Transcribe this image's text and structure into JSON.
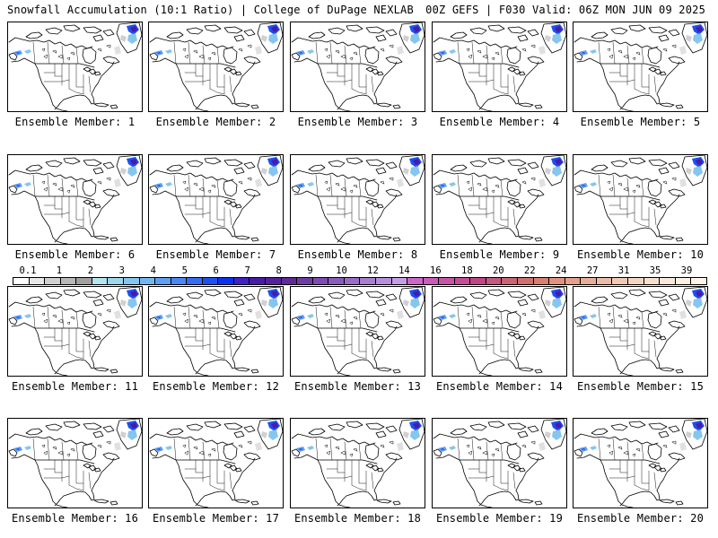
{
  "header": {
    "title": "Snowfall Accumulation (10:1 Ratio) | College of DuPage NEXLAB",
    "run_info": "00Z GEFS | F030 Valid: 06Z MON JUN 09 2025"
  },
  "panels": [
    {
      "label": "Ensemble Member: 1"
    },
    {
      "label": "Ensemble Member: 2"
    },
    {
      "label": "Ensemble Member: 3"
    },
    {
      "label": "Ensemble Member: 4"
    },
    {
      "label": "Ensemble Member: 5"
    },
    {
      "label": "Ensemble Member: 6"
    },
    {
      "label": "Ensemble Member: 7"
    },
    {
      "label": "Ensemble Member: 8"
    },
    {
      "label": "Ensemble Member: 9"
    },
    {
      "label": "Ensemble Member: 10"
    },
    {
      "label": "Ensemble Member: 11"
    },
    {
      "label": "Ensemble Member: 12"
    },
    {
      "label": "Ensemble Member: 13"
    },
    {
      "label": "Ensemble Member: 14"
    },
    {
      "label": "Ensemble Member: 15"
    },
    {
      "label": "Ensemble Member: 16"
    },
    {
      "label": "Ensemble Member: 17"
    },
    {
      "label": "Ensemble Member: 18"
    },
    {
      "label": "Ensemble Member: 19"
    },
    {
      "label": "Ensemble Member: 20"
    }
  ],
  "colorbar": {
    "tick_labels": [
      "0.1",
      "1",
      "2",
      "3",
      "4",
      "5",
      "6",
      "7",
      "8",
      "9",
      "10",
      "12",
      "14",
      "16",
      "18",
      "20",
      "22",
      "24",
      "27",
      "31",
      "35",
      "39"
    ],
    "colors": [
      "#ffffff",
      "#e8e8e8",
      "#d0d0d0",
      "#b8b8b8",
      "#a0a0a0",
      "#b4e4ee",
      "#9ed6ec",
      "#86c6ee",
      "#74b6f0",
      "#5f9ef2",
      "#4a86f4",
      "#356cf4",
      "#1c50f2",
      "#0a32ee",
      "#3e22c6",
      "#4a1aa8",
      "#56209c",
      "#622896",
      "#703ca4",
      "#7e4cb0",
      "#8a5cbc",
      "#9a6cc8",
      "#a87ed0",
      "#b68edc",
      "#c49ee6",
      "#cc66c8",
      "#c85cb8",
      "#c853a8",
      "#c44c98",
      "#c04486",
      "#c4587e",
      "#c86474",
      "#cc7070",
      "#d88070",
      "#e0927e",
      "#e4a08a",
      "#e8ae98",
      "#ecbca6",
      "#f0c8b4",
      "#f4d4c2",
      "#f8e0d0",
      "#fbe8dc",
      "#fdf0e4",
      "#fff4e8"
    ]
  }
}
